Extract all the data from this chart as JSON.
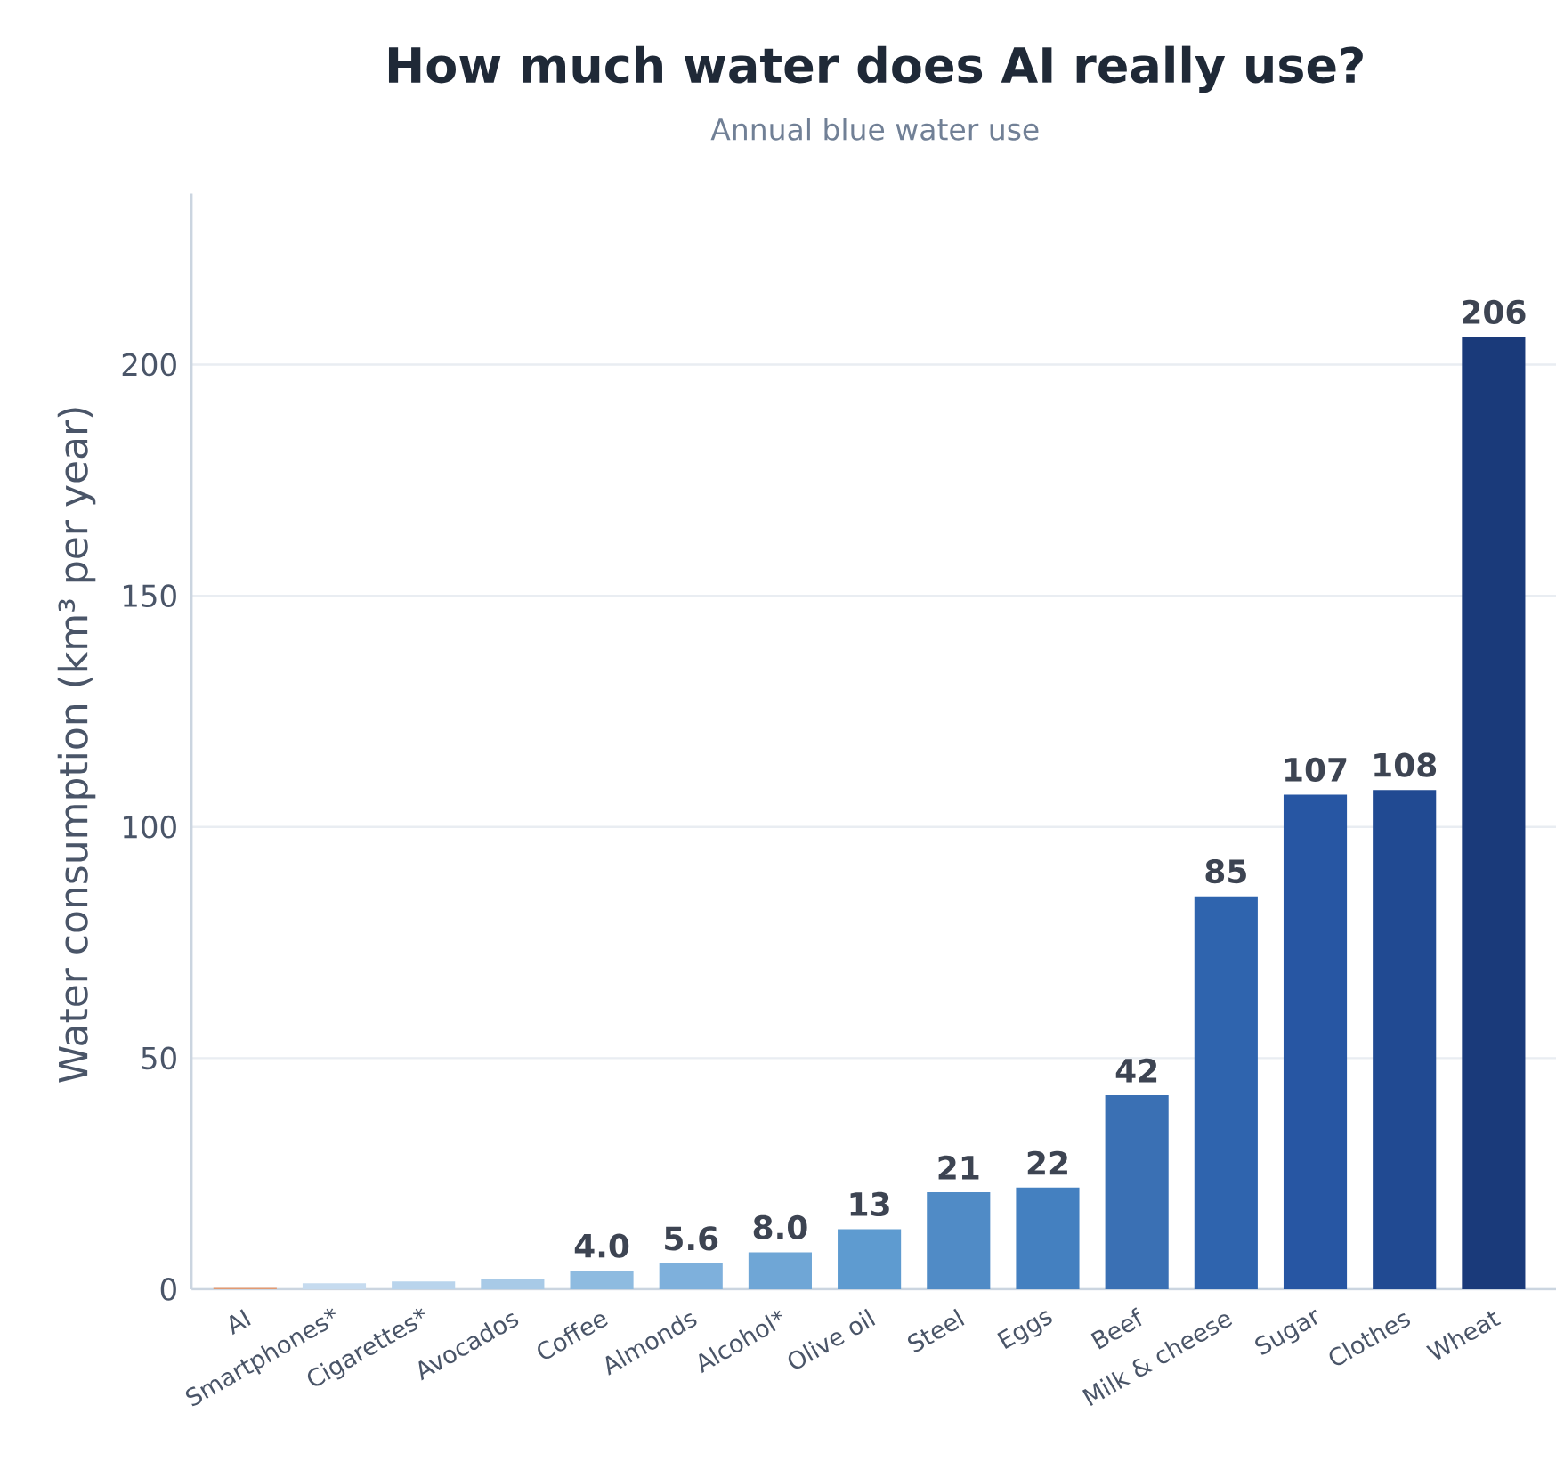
{
  "chart_data": {
    "type": "bar",
    "title": "How much water does AI really use?",
    "subtitle": "Annual blue water use",
    "ylabel": "Water consumption (km³ per year)",
    "categories": [
      "AI",
      "Smartphones*",
      "Cigarettes*",
      "Avocados",
      "Coffee",
      "Almonds",
      "Alcohol*",
      "Olive oil",
      "Steel",
      "Eggs",
      "Beef",
      "Milk & cheese",
      "Sugar",
      "Clothes",
      "Wheat"
    ],
    "values": [
      0.3,
      1.3,
      1.7,
      2.1,
      4.0,
      5.6,
      8.0,
      13,
      21,
      22,
      42,
      85,
      107,
      108,
      206
    ],
    "value_labels": [
      null,
      null,
      null,
      null,
      "4.0",
      "5.6",
      "8.0",
      "13",
      "21",
      "22",
      "42",
      "85",
      "107",
      "108",
      "206"
    ],
    "colors": [
      "#e39a72",
      "#c6dbef",
      "#b9d4ec",
      "#a8cae7",
      "#8ebbe0",
      "#7eb0dc",
      "#6fa6d6",
      "#5e9bd0",
      "#508bc6",
      "#4480c0",
      "#3a70b4",
      "#2f64ae",
      "#2756a3",
      "#214a92",
      "#1a3a7a"
    ],
    "ylim": [
      0,
      237
    ],
    "yticks": [
      0,
      50,
      100,
      150,
      200
    ],
    "grid": "y"
  }
}
